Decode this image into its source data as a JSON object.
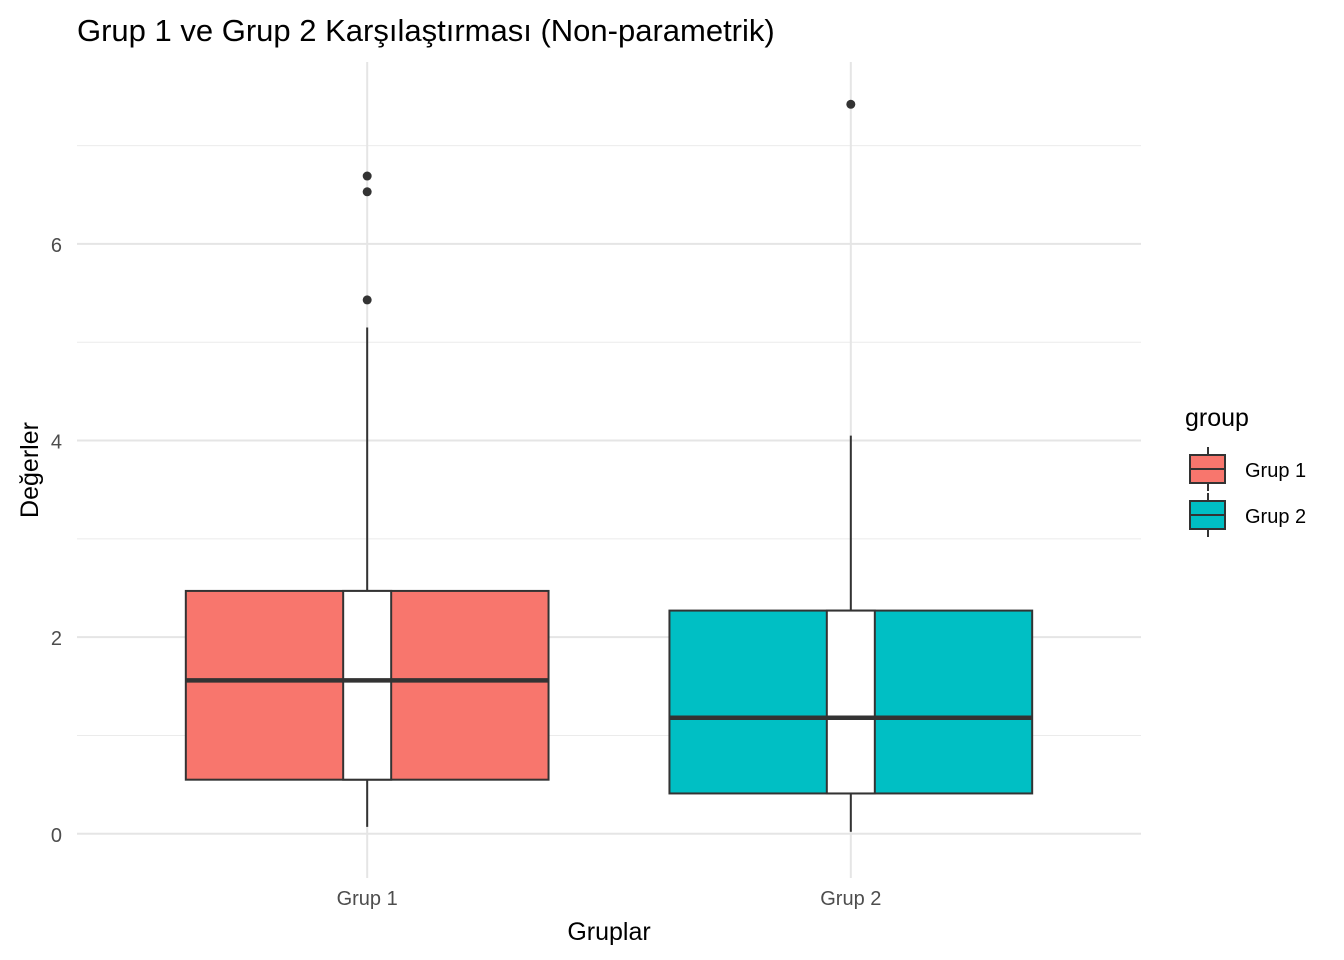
{
  "chart_data": {
    "type": "boxplot",
    "title": "Grup 1 ve Grup 2 Karşılaştırması (Non-parametrik)",
    "xlabel": "Gruplar",
    "ylabel": "Değerler",
    "ylim": [
      -0.45,
      7.85
    ],
    "yticks": [
      0,
      2,
      4,
      6
    ],
    "ytick_labels": [
      "0",
      "2",
      "4",
      "6"
    ],
    "categories": [
      "Grup 1",
      "Grup 2"
    ],
    "grid": true,
    "legend": {
      "title": "group",
      "position": "right",
      "entries": [
        "Grup 1",
        "Grup 2"
      ]
    },
    "series": [
      {
        "name": "Grup 1",
        "color": "#F8766D",
        "whisker_low": 0.07,
        "q1": 0.55,
        "median": 1.56,
        "q3": 2.47,
        "whisker_high": 5.15,
        "notch_low": 0.55,
        "notch_high": 2.47,
        "outliers": [
          5.43,
          6.53,
          6.69
        ]
      },
      {
        "name": "Grup 2",
        "color": "#00BFC4",
        "whisker_low": 0.02,
        "q1": 0.41,
        "median": 1.18,
        "q3": 2.27,
        "whisker_high": 4.05,
        "notch_low": 0.41,
        "notch_high": 2.27,
        "outliers": [
          7.42
        ]
      }
    ]
  }
}
